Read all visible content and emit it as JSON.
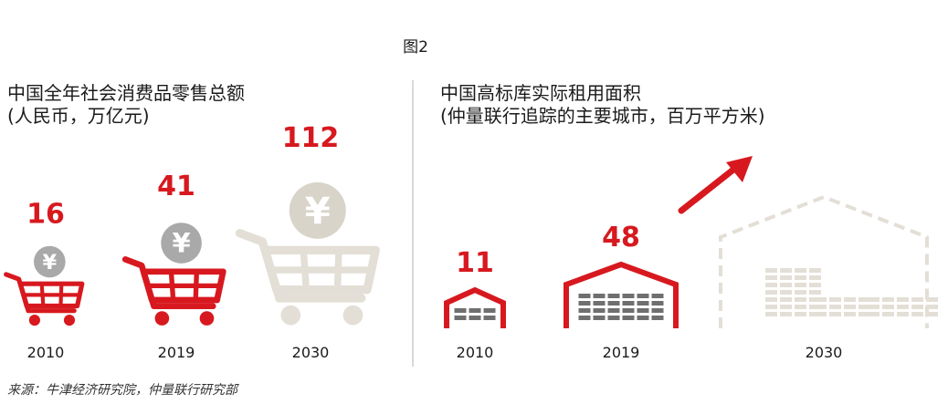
{
  "figure": {
    "title": "图2",
    "source": "来源：牛津经济研究院，仲量联行研究部"
  },
  "colors": {
    "accent": "#d7191f",
    "neutral": "#e3dfd6",
    "coin_gray": "#a9a9a9",
    "dark_bar": "#6f6f6f",
    "divider": "#bdbdbd"
  },
  "chart_data": [
    {
      "type": "bar",
      "title_line1": "中国全年社会消费品零售总额",
      "title_line2": "(人民币，万亿元)",
      "categories": [
        "2010",
        "2019",
        "2030"
      ],
      "values": [
        16,
        41,
        112
      ],
      "icon": "shopping-cart-with-yuan-coin"
    },
    {
      "type": "bar",
      "title_line1": "中国高标库实际租用面积",
      "title_line2": "(仲量联行追踪的主要城市，百万平方米)",
      "categories": [
        "2010",
        "2019",
        "2030"
      ],
      "values": [
        11,
        48,
        null
      ],
      "icon": "warehouse",
      "trend": "up-arrow"
    }
  ]
}
